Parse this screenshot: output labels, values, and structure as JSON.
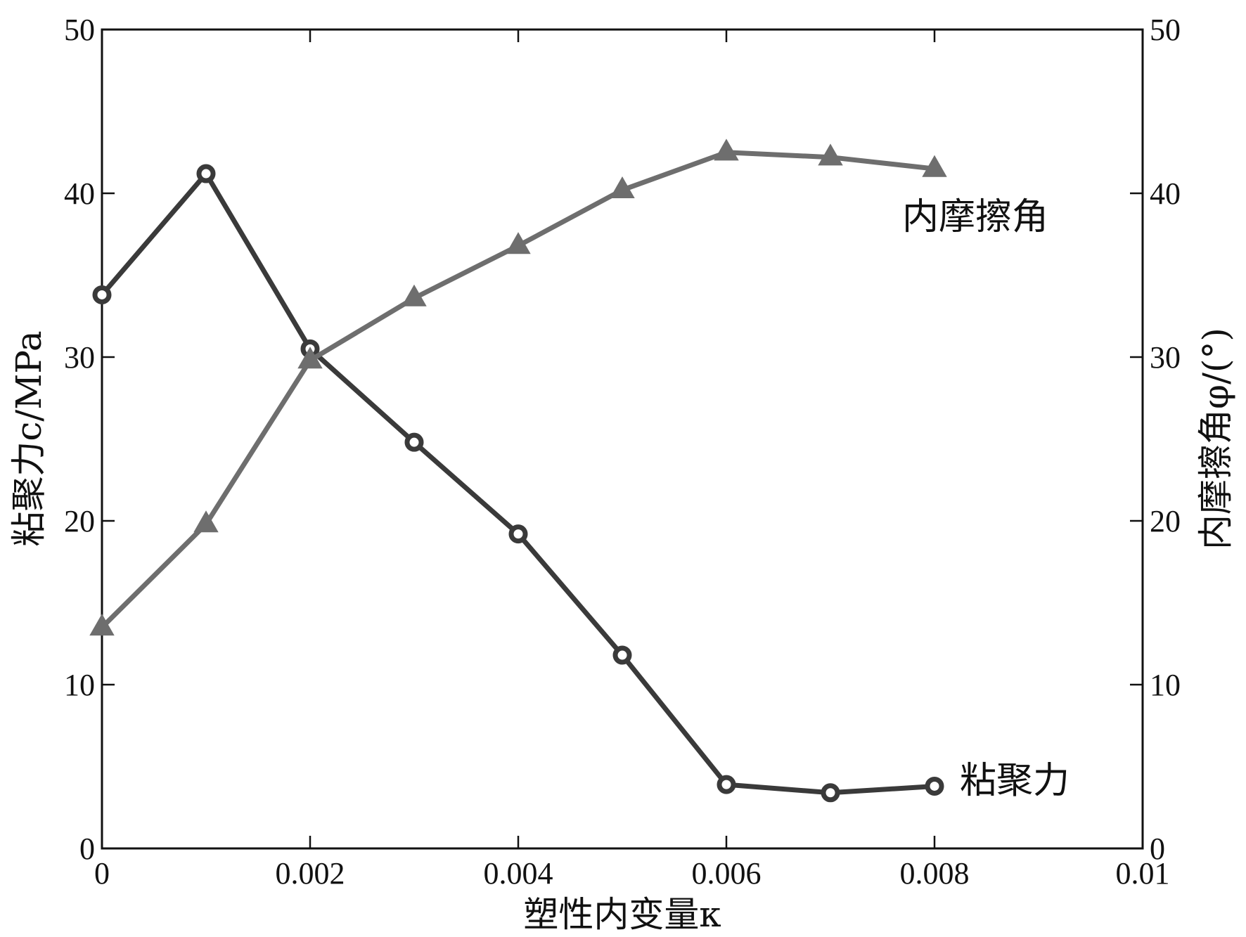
{
  "chart_data": {
    "type": "line",
    "x": [
      0,
      0.001,
      0.002,
      0.003,
      0.004,
      0.005,
      0.006,
      0.007,
      0.008
    ],
    "xlim": [
      0,
      0.01
    ],
    "x_ticks": [
      0,
      0.002,
      0.004,
      0.006,
      0.008,
      0.01
    ],
    "x_tick_labels": [
      "0",
      "0.002",
      "0.004",
      "0.006",
      "0.008",
      "0.01"
    ],
    "ylim_left": [
      0,
      50
    ],
    "ylim_right": [
      0,
      50
    ],
    "y_ticks": [
      0,
      10,
      20,
      30,
      40,
      50
    ],
    "y_tick_labels": [
      "0",
      "10",
      "20",
      "30",
      "40",
      "50"
    ],
    "xlabel": "塑性内变量κ",
    "ylabel_left": "粘聚力c/MPa",
    "ylabel_right": "内摩擦角φ/(°)",
    "grid": false,
    "legend": "none",
    "series": [
      {
        "name": "粘聚力",
        "axis": "left",
        "marker": "circle",
        "color": "#3a3a3a",
        "values": [
          33.8,
          41.2,
          30.5,
          24.8,
          19.2,
          11.8,
          3.9,
          3.4,
          3.8
        ]
      },
      {
        "name": "内摩擦角",
        "axis": "right",
        "marker": "triangle",
        "color": "#6e6e6e",
        "values": [
          13.5,
          19.8,
          29.8,
          33.6,
          36.8,
          40.2,
          42.5,
          42.2,
          41.5
        ]
      }
    ]
  }
}
